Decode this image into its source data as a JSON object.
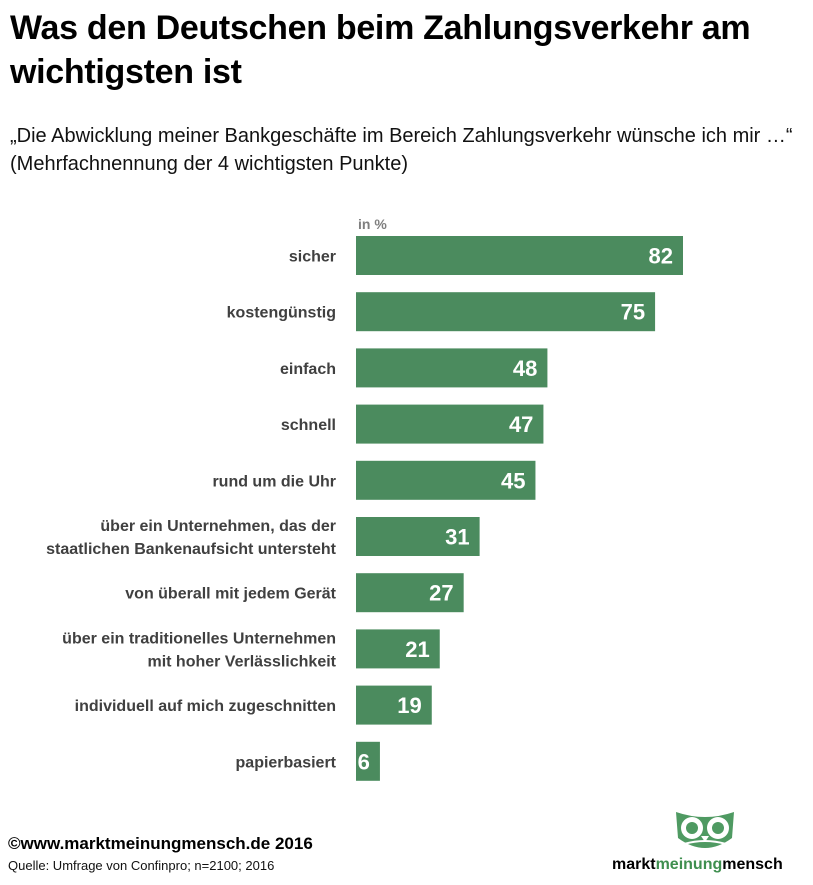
{
  "chart_data": {
    "type": "bar",
    "orientation": "horizontal",
    "title": "Was den Deutschen beim Zahlungsverkehr am wichtigsten ist",
    "subtitle": "„Die Abwicklung meiner Bankgeschäfte im Bereich Zahlungsverkehr wünsche ich mir …“ (Mehrfachnennung der 4 wichtigsten Punkte)",
    "unit_label": "in %",
    "categories": [
      [
        "sicher"
      ],
      [
        "kostengünstig"
      ],
      [
        "einfach"
      ],
      [
        "schnell"
      ],
      [
        "rund um die Uhr"
      ],
      [
        "über ein Unternehmen, das der",
        "staatlichen Bankenaufsicht untersteht"
      ],
      [
        "von überall mit jedem Gerät"
      ],
      [
        "über ein traditionelles Unternehmen",
        "mit hoher Verlässlichkeit"
      ],
      [
        "individuell auf mich zugeschnitten"
      ],
      [
        "papierbasiert"
      ]
    ],
    "values": [
      82,
      75,
      48,
      47,
      45,
      31,
      27,
      21,
      19,
      6
    ],
    "xlim": [
      0,
      100
    ],
    "bar_color": "#4b8b5e",
    "value_label_color": "#ffffff",
    "category_label_color": "#404040"
  },
  "footer": {
    "copyright": "©www.marktmeinungmensch.de 2016",
    "source": "Quelle: Umfrage von Confinpro; n=2100; 2016"
  },
  "logo": {
    "part1": "markt",
    "part2": "meinung",
    "part3": "mensch",
    "accent_color": "#3f8f4f"
  }
}
